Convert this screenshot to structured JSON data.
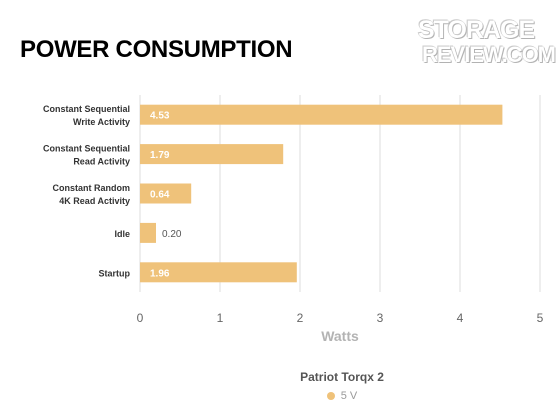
{
  "logo_text": {
    "line1": "STORAGE",
    "line2": "REVIEW.COM"
  },
  "chart_data": {
    "type": "bar",
    "orientation": "horizontal",
    "title": "POWER CONSUMPTION",
    "xlabel": "Watts",
    "ylabel": "",
    "xlim": [
      0,
      5
    ],
    "x_ticks": [
      "0",
      "1",
      "2",
      "3",
      "4",
      "5"
    ],
    "grid": true,
    "legend_placement": "bottom",
    "legend_title": "Patriot Torqx 2",
    "categories": [
      [
        "Constant Sequential",
        "Write Activity"
      ],
      [
        "Constant Sequential",
        "Read Activity"
      ],
      [
        "Constant Random",
        "4K Read Activity"
      ],
      [
        "Idle"
      ],
      [
        "Startup"
      ]
    ],
    "series": [
      {
        "name": "5 V",
        "color": "#efc27a",
        "values": [
          4.53,
          1.79,
          0.64,
          0.2,
          1.96
        ],
        "value_labels": [
          "4.53",
          "1.79",
          "0.64",
          "0.20",
          "1.96"
        ]
      }
    ]
  }
}
